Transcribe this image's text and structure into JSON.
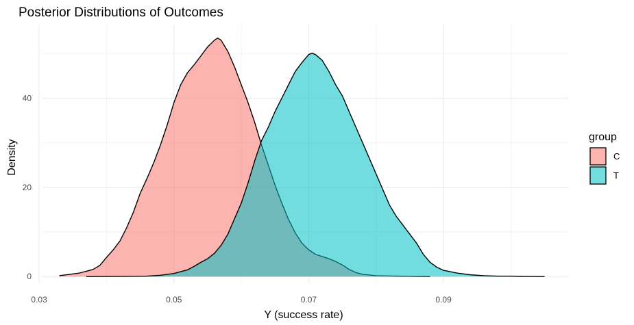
{
  "chart_data": {
    "type": "area",
    "title": "Posterior Distributions of Outcomes",
    "xlabel": "Y (success rate)",
    "ylabel": "Density",
    "xlim": [
      0.0305,
      0.1085
    ],
    "ylim": [
      -1.5,
      56.5
    ],
    "x_ticks": [
      0.03,
      0.05,
      0.07,
      0.09
    ],
    "x_tick_labels": [
      "0.03",
      "0.05",
      "0.07",
      "0.09"
    ],
    "y_ticks": [
      0,
      20,
      40
    ],
    "y_tick_labels": [
      "0",
      "20",
      "40"
    ],
    "grid": true,
    "legend": {
      "title": "group",
      "position": "right"
    },
    "series": [
      {
        "name": "C",
        "color": "#F8766D",
        "points": [
          [
            0.033,
            0.2
          ],
          [
            0.036,
            0.8
          ],
          [
            0.038,
            1.6
          ],
          [
            0.039,
            2.5
          ],
          [
            0.04,
            4.3
          ],
          [
            0.041,
            6.0
          ],
          [
            0.042,
            8.0
          ],
          [
            0.043,
            11.0
          ],
          [
            0.044,
            14.5
          ],
          [
            0.045,
            18.7
          ],
          [
            0.046,
            22.0
          ],
          [
            0.047,
            25.5
          ],
          [
            0.048,
            29.5
          ],
          [
            0.049,
            34.0
          ],
          [
            0.05,
            39.0
          ],
          [
            0.051,
            43.0
          ],
          [
            0.052,
            45.7
          ],
          [
            0.053,
            47.5
          ],
          [
            0.054,
            49.5
          ],
          [
            0.055,
            51.5
          ],
          [
            0.056,
            53.0
          ],
          [
            0.0565,
            53.5
          ],
          [
            0.057,
            53.0
          ],
          [
            0.058,
            50.5
          ],
          [
            0.059,
            47.0
          ],
          [
            0.06,
            43.0
          ],
          [
            0.061,
            39.0
          ],
          [
            0.062,
            34.5
          ],
          [
            0.063,
            29.5
          ],
          [
            0.064,
            25.0
          ],
          [
            0.065,
            20.5
          ],
          [
            0.066,
            16.5
          ],
          [
            0.067,
            12.8
          ],
          [
            0.068,
            9.8
          ],
          [
            0.069,
            7.5
          ],
          [
            0.07,
            6.0
          ],
          [
            0.071,
            5.0
          ],
          [
            0.072,
            4.5
          ],
          [
            0.073,
            4.0
          ],
          [
            0.074,
            3.4
          ],
          [
            0.075,
            2.6
          ],
          [
            0.076,
            1.6
          ],
          [
            0.077,
            0.9
          ],
          [
            0.078,
            0.5
          ],
          [
            0.08,
            0.2
          ],
          [
            0.083,
            0.1
          ],
          [
            0.088,
            0.0
          ]
        ]
      },
      {
        "name": "T",
        "color": "#00BFC4",
        "points": [
          [
            0.037,
            0.0
          ],
          [
            0.042,
            0.05
          ],
          [
            0.046,
            0.1
          ],
          [
            0.048,
            0.3
          ],
          [
            0.05,
            0.7
          ],
          [
            0.052,
            1.5
          ],
          [
            0.053,
            2.3
          ],
          [
            0.054,
            3.2
          ],
          [
            0.055,
            4.0
          ],
          [
            0.056,
            5.2
          ],
          [
            0.057,
            7.0
          ],
          [
            0.058,
            9.5
          ],
          [
            0.059,
            13.0
          ],
          [
            0.06,
            16.5
          ],
          [
            0.061,
            21.0
          ],
          [
            0.062,
            26.0
          ],
          [
            0.063,
            30.5
          ],
          [
            0.064,
            33.5
          ],
          [
            0.065,
            37.0
          ],
          [
            0.066,
            40.0
          ],
          [
            0.067,
            43.0
          ],
          [
            0.068,
            46.0
          ],
          [
            0.069,
            48.0
          ],
          [
            0.07,
            49.8
          ],
          [
            0.0705,
            50.1
          ],
          [
            0.071,
            49.8
          ],
          [
            0.072,
            48.5
          ],
          [
            0.073,
            46.0
          ],
          [
            0.074,
            43.0
          ],
          [
            0.075,
            40.5
          ],
          [
            0.076,
            37.0
          ],
          [
            0.077,
            33.5
          ],
          [
            0.078,
            30.0
          ],
          [
            0.079,
            26.5
          ],
          [
            0.08,
            23.0
          ],
          [
            0.081,
            19.5
          ],
          [
            0.082,
            16.0
          ],
          [
            0.083,
            13.5
          ],
          [
            0.084,
            11.5
          ],
          [
            0.085,
            9.5
          ],
          [
            0.086,
            7.5
          ],
          [
            0.087,
            5.0
          ],
          [
            0.088,
            3.2
          ],
          [
            0.089,
            2.1
          ],
          [
            0.09,
            1.4
          ],
          [
            0.092,
            0.8
          ],
          [
            0.094,
            0.4
          ],
          [
            0.096,
            0.2
          ],
          [
            0.098,
            0.1
          ],
          [
            0.1,
            0.1
          ],
          [
            0.102,
            0.05
          ],
          [
            0.105,
            0.0
          ]
        ]
      }
    ]
  }
}
